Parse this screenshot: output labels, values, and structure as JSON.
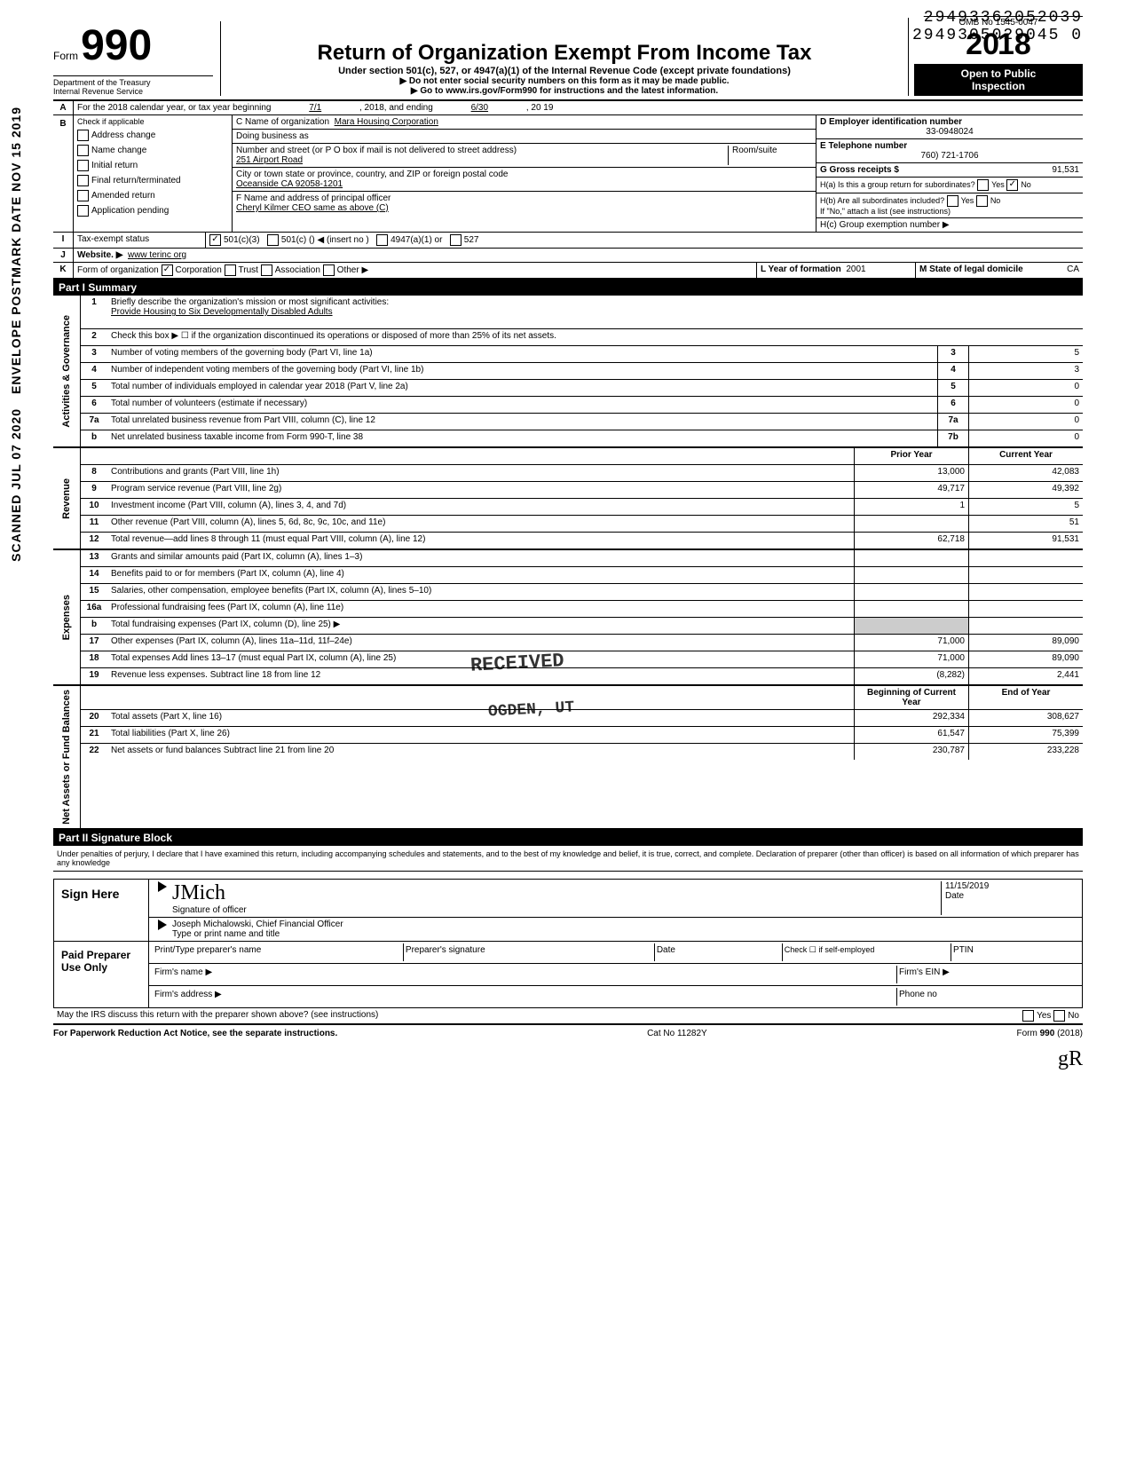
{
  "stamps": {
    "sidebar1": "ENVELOPE POSTMARK DATE NOV 15 2019",
    "sidebar2": "SCANNED JUL 07 2020",
    "received": "RECEIVED",
    "ogden": "OGDEN, UT",
    "dln1": "29493362052039",
    "dln2": "2949305029045 0",
    "hand_year": "2018"
  },
  "header": {
    "form_word": "Form",
    "form_no": "990",
    "dept": "Department of the Treasury\nInternal Revenue Service",
    "title": "Return of Organization Exempt From Income Tax",
    "sub": "Under section 501(c), 527, or 4947(a)(1) of the Internal Revenue Code (except private foundations)",
    "sub2a": "▶ Do not enter social security numbers on this form as it may be made public.",
    "sub2b": "▶ Go to www.irs.gov/Form990 for instructions and the latest information.",
    "omb": "OMB No 1545-0047",
    "year": "2018",
    "inspect1": "Open to Public",
    "inspect2": "Inspection"
  },
  "rowA": {
    "label": "A",
    "text": "For the 2018 calendar year, or tax year beginning",
    "begin": "7/1",
    "mid": ", 2018, and ending",
    "end": "6/30",
    "endyr": ", 20 19"
  },
  "B": {
    "label": "B",
    "hint": "Check if applicable",
    "items": [
      "Address change",
      "Name change",
      "Initial return",
      "Final return/terminated",
      "Amended return",
      "Application pending"
    ]
  },
  "C": {
    "c_label": "C Name of organization",
    "c_value": "Mara Housing Corporation",
    "dba_label": "Doing business as",
    "street_label": "Number and street (or P O box if mail is not delivered to street address)",
    "street": "251 Airport Road",
    "room_label": "Room/suite",
    "city_label": "City or town state or province, country, and ZIP or foreign postal code",
    "city": "Oceanside CA 92058-1201",
    "f_label": "F Name and address of principal officer",
    "f_value": "Cheryl Kilmer CEO same as above (C)"
  },
  "D": {
    "d_label": "D Employer identification number",
    "d_value": "33-0948024",
    "e_label": "E Telephone number",
    "e_value": "760) 721-1706",
    "g_label": "G Gross receipts $",
    "g_value": "91,531",
    "ha_label": "H(a) Is this a group return for subordinates?",
    "yes": "Yes",
    "no": "No",
    "hb_label": "H(b) Are all subordinates included?",
    "hb_note": "If \"No,\" attach a list (see instructions)",
    "hc_label": "H(c) Group exemption number ▶"
  },
  "I": {
    "label": "I",
    "text": "Tax-exempt status",
    "opts": [
      "501(c)(3)",
      "501(c) (",
      "4947(a)(1) or",
      "527"
    ],
    "insert": ") ◀ (insert no )"
  },
  "J": {
    "label": "J",
    "text": "Website. ▶",
    "value": "www terinc org"
  },
  "K": {
    "label": "K",
    "text": "Form of organization",
    "opts": [
      "Corporation",
      "Trust",
      "Association",
      "Other ▶"
    ],
    "l_label": "L Year of formation",
    "l_value": "2001",
    "m_label": "M State of legal domicile",
    "m_value": "CA"
  },
  "part1": {
    "header": "Part I    Summary",
    "sections": [
      {
        "vlabel": "Activities & Governance",
        "rows": [
          {
            "n": "1",
            "label": "Briefly describe the organization's mission or most significant activities:",
            "full": true,
            "extra": "Provide Housing to Six Developmentally Disabled Adults"
          },
          {
            "n": "2",
            "label": "Check this box ▶ ☐ if the organization discontinued its operations or disposed of more than 25% of its net assets.",
            "full": true
          },
          {
            "n": "3",
            "label": "Number of voting members of the governing body (Part VI, line 1a)",
            "box": "3",
            "v1": "",
            "v2": "5"
          },
          {
            "n": "4",
            "label": "Number of independent voting members of the governing body (Part VI, line 1b)",
            "box": "4",
            "v1": "",
            "v2": "3"
          },
          {
            "n": "5",
            "label": "Total number of individuals employed in calendar year 2018 (Part V, line 2a)",
            "box": "5",
            "v1": "",
            "v2": "0"
          },
          {
            "n": "6",
            "label": "Total number of volunteers (estimate if necessary)",
            "box": "6",
            "v1": "",
            "v2": "0"
          },
          {
            "n": "7a",
            "label": "Total unrelated business revenue from Part VIII, column (C), line 12",
            "box": "7a",
            "v1": "",
            "v2": "0"
          },
          {
            "n": "b",
            "label": "Net unrelated business taxable income from Form 990-T, line 38",
            "box": "7b",
            "v1": "",
            "v2": "0"
          }
        ]
      },
      {
        "vlabel": "Revenue",
        "header_row": {
          "c1": "Prior Year",
          "c2": "Current Year"
        },
        "rows": [
          {
            "n": "8",
            "label": "Contributions and grants (Part VIII, line 1h)",
            "v1": "13,000",
            "v2": "42,083"
          },
          {
            "n": "9",
            "label": "Program service revenue (Part VIII, line 2g)",
            "v1": "49,717",
            "v2": "49,392"
          },
          {
            "n": "10",
            "label": "Investment income (Part VIII, column (A), lines 3, 4, and 7d)",
            "v1": "1",
            "v2": "5"
          },
          {
            "n": "11",
            "label": "Other revenue (Part VIII, column (A), lines 5, 6d, 8c, 9c, 10c, and 11e)",
            "v1": "",
            "v2": "51"
          },
          {
            "n": "12",
            "label": "Total revenue—add lines 8 through 11 (must equal Part VIII, column (A), line 12)",
            "v1": "62,718",
            "v2": "91,531"
          }
        ]
      },
      {
        "vlabel": "Expenses",
        "rows": [
          {
            "n": "13",
            "label": "Grants and similar amounts paid (Part IX, column (A), lines 1–3)",
            "v1": "",
            "v2": ""
          },
          {
            "n": "14",
            "label": "Benefits paid to or for members (Part IX, column (A), line 4)",
            "v1": "",
            "v2": ""
          },
          {
            "n": "15",
            "label": "Salaries, other compensation, employee benefits (Part IX, column (A), lines 5–10)",
            "v1": "",
            "v2": ""
          },
          {
            "n": "16a",
            "label": "Professional fundraising fees (Part IX, column (A), line 11e)",
            "v1": "",
            "v2": ""
          },
          {
            "n": "b",
            "label": "Total fundraising expenses (Part IX, column (D), line 25) ▶",
            "v1": "",
            "v2": "",
            "shaded": true
          },
          {
            "n": "17",
            "label": "Other expenses (Part IX, column (A), lines 11a–11d, 11f–24e)",
            "v1": "71,000",
            "v2": "89,090"
          },
          {
            "n": "18",
            "label": "Total expenses Add lines 13–17 (must equal Part IX, column (A), line 25)",
            "v1": "71,000",
            "v2": "89,090"
          },
          {
            "n": "19",
            "label": "Revenue less expenses. Subtract line 18 from line 12",
            "v1": "(8,282)",
            "v2": "2,441"
          }
        ]
      },
      {
        "vlabel": "Net Assets or Fund Balances",
        "header_row": {
          "c1": "Beginning of Current Year",
          "c2": "End of Year"
        },
        "rows": [
          {
            "n": "20",
            "label": "Total assets (Part X, line 16)",
            "v1": "292,334",
            "v2": "308,627"
          },
          {
            "n": "21",
            "label": "Total liabilities (Part X, line 26)",
            "v1": "61,547",
            "v2": "75,399"
          },
          {
            "n": "22",
            "label": "Net assets or fund balances Subtract line 21 from line 20",
            "v1": "230,787",
            "v2": "233,228"
          }
        ]
      }
    ]
  },
  "part2": {
    "header": "Part II    Signature Block",
    "decl": "Under penalties of perjury, I declare that I have examined this return, including accompanying schedules and statements, and to the best of my knowledge and belief, it is true, correct, and complete. Declaration of preparer (other than officer) is based on all information of which preparer has any knowledge",
    "sign_here": "Sign Here",
    "sig_label": "Signature of officer",
    "date_label": "Date",
    "date_value": "11/15/2019",
    "name_label": "Type or print name and title",
    "name_value": "Joseph Michalowski, Chief Financial Officer",
    "paid": "Paid Preparer Use Only",
    "prep_name": "Print/Type preparer's name",
    "prep_sig": "Preparer's signature",
    "prep_date": "Date",
    "check_self": "Check ☐ if self-employed",
    "ptin": "PTIN",
    "firm_name": "Firm's name ▶",
    "firm_ein": "Firm's EIN ▶",
    "firm_addr": "Firm's address ▶",
    "phone": "Phone no",
    "discuss": "May the IRS discuss this return with the preparer shown above? (see instructions)",
    "yes": "Yes",
    "no": "No"
  },
  "footer": {
    "left": "For Paperwork Reduction Act Notice, see the separate instructions.",
    "mid": "Cat No 11282Y",
    "right": "Form 990 (2018)"
  }
}
